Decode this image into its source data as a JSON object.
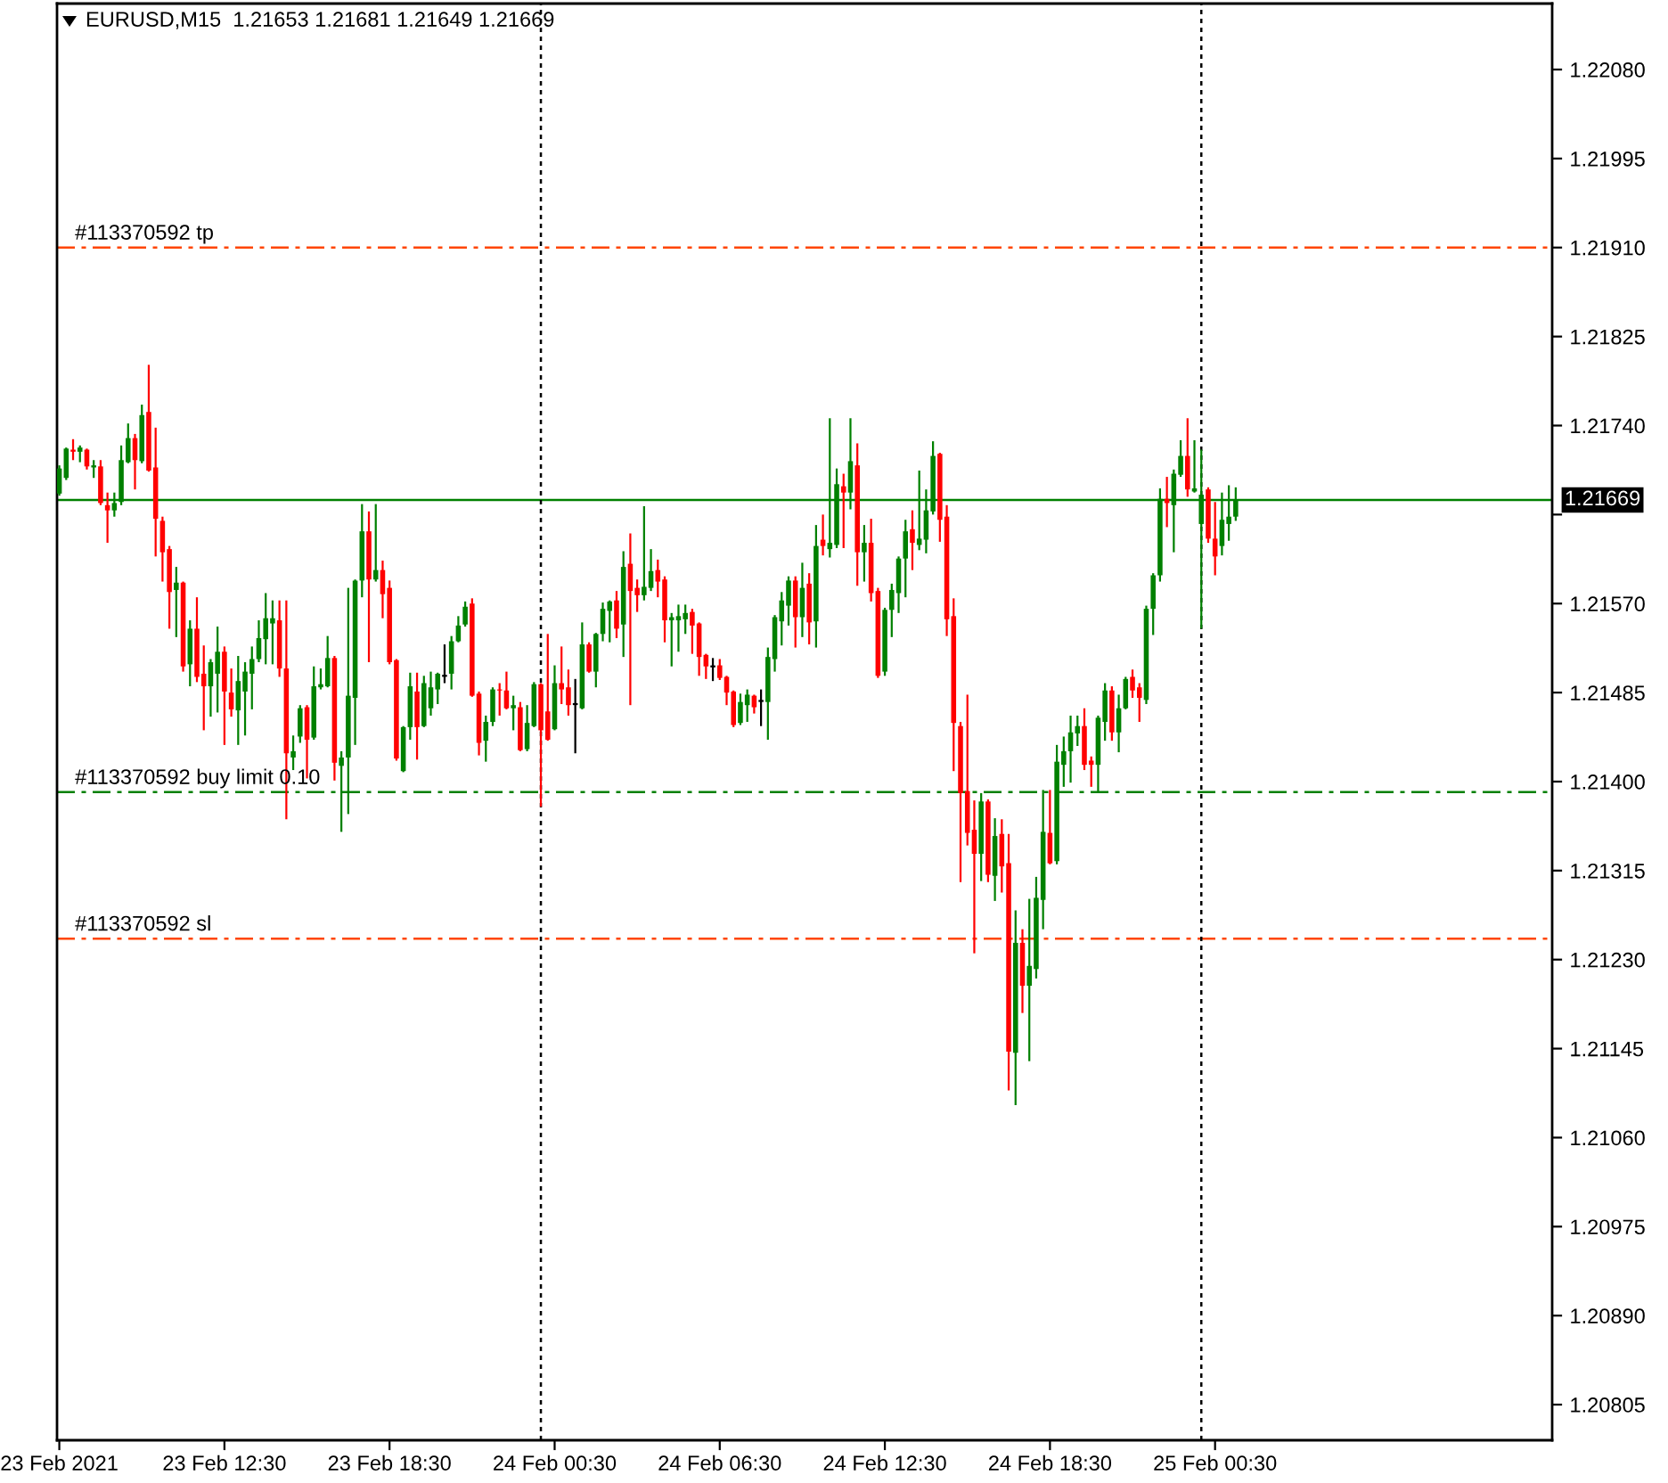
{
  "chart_data": {
    "type": "candlestick",
    "title": "EURUSD,M15  1.21653 1.21681 1.21649 1.21669",
    "x": [
      "2021-02-23T06:30",
      "2021-02-23T06:45",
      "2021-02-23T07:00",
      "2021-02-23T07:15",
      "2021-02-23T07:30",
      "2021-02-23T07:45",
      "2021-02-23T08:00",
      "2021-02-23T08:15",
      "2021-02-23T08:30",
      "2021-02-23T08:45",
      "2021-02-23T09:00",
      "2021-02-23T09:15",
      "2021-02-23T09:30",
      "2021-02-23T09:45",
      "2021-02-23T10:00",
      "2021-02-23T10:15",
      "2021-02-23T10:30",
      "2021-02-23T10:45",
      "2021-02-23T11:00",
      "2021-02-23T11:15",
      "2021-02-23T11:30",
      "2021-02-23T11:45",
      "2021-02-23T12:00",
      "2021-02-23T12:15",
      "2021-02-23T12:30",
      "2021-02-23T12:45",
      "2021-02-23T13:00",
      "2021-02-23T13:15",
      "2021-02-23T13:30",
      "2021-02-23T13:45",
      "2021-02-23T14:00",
      "2021-02-23T14:15",
      "2021-02-23T14:30",
      "2021-02-23T14:45",
      "2021-02-23T15:00",
      "2021-02-23T15:15",
      "2021-02-23T15:30",
      "2021-02-23T15:45",
      "2021-02-23T16:00",
      "2021-02-23T16:15",
      "2021-02-23T16:30",
      "2021-02-23T16:45",
      "2021-02-23T17:00",
      "2021-02-23T17:15",
      "2021-02-23T17:30",
      "2021-02-23T17:45",
      "2021-02-23T18:00",
      "2021-02-23T18:15",
      "2021-02-23T18:30",
      "2021-02-23T18:45",
      "2021-02-23T19:00",
      "2021-02-23T19:15",
      "2021-02-23T19:30",
      "2021-02-23T19:45",
      "2021-02-23T20:00",
      "2021-02-23T20:15",
      "2021-02-23T20:30",
      "2021-02-23T20:45",
      "2021-02-23T21:00",
      "2021-02-23T21:15",
      "2021-02-23T21:30",
      "2021-02-23T21:45",
      "2021-02-23T22:00",
      "2021-02-23T22:15",
      "2021-02-23T22:30",
      "2021-02-23T22:45",
      "2021-02-23T23:00",
      "2021-02-23T23:15",
      "2021-02-23T23:30",
      "2021-02-23T23:45",
      "2021-02-24T00:00",
      "2021-02-24T00:15",
      "2021-02-24T00:30",
      "2021-02-24T00:45",
      "2021-02-24T01:00",
      "2021-02-24T01:15",
      "2021-02-24T01:30",
      "2021-02-24T01:45",
      "2021-02-24T02:00",
      "2021-02-24T02:15",
      "2021-02-24T02:30",
      "2021-02-24T02:45",
      "2021-02-24T03:00",
      "2021-02-24T03:15",
      "2021-02-24T03:30",
      "2021-02-24T03:45",
      "2021-02-24T04:00",
      "2021-02-24T04:15",
      "2021-02-24T04:30",
      "2021-02-24T04:45",
      "2021-02-24T05:00",
      "2021-02-24T05:15",
      "2021-02-24T05:30",
      "2021-02-24T05:45",
      "2021-02-24T06:00",
      "2021-02-24T06:15",
      "2021-02-24T06:30",
      "2021-02-24T06:45",
      "2021-02-24T07:00",
      "2021-02-24T07:15",
      "2021-02-24T07:30",
      "2021-02-24T07:45",
      "2021-02-24T08:00",
      "2021-02-24T08:15",
      "2021-02-24T08:30",
      "2021-02-24T08:45",
      "2021-02-24T09:00",
      "2021-02-24T09:15",
      "2021-02-24T09:30",
      "2021-02-24T09:45",
      "2021-02-24T10:00",
      "2021-02-24T10:15",
      "2021-02-24T10:30",
      "2021-02-24T10:45",
      "2021-02-24T11:00",
      "2021-02-24T11:15",
      "2021-02-24T11:30",
      "2021-02-24T11:45",
      "2021-02-24T12:00",
      "2021-02-24T12:15",
      "2021-02-24T12:30",
      "2021-02-24T12:45",
      "2021-02-24T13:00",
      "2021-02-24T13:15",
      "2021-02-24T13:30",
      "2021-02-24T13:45",
      "2021-02-24T14:00",
      "2021-02-24T14:15",
      "2021-02-24T14:30",
      "2021-02-24T14:45",
      "2021-02-24T15:00",
      "2021-02-24T15:15",
      "2021-02-24T15:30",
      "2021-02-24T15:45",
      "2021-02-24T16:00",
      "2021-02-24T16:15",
      "2021-02-24T16:30",
      "2021-02-24T16:45",
      "2021-02-24T17:00",
      "2021-02-24T17:15",
      "2021-02-24T17:30",
      "2021-02-24T17:45",
      "2021-02-24T18:00",
      "2021-02-24T18:15",
      "2021-02-24T18:30",
      "2021-02-24T18:45",
      "2021-02-24T19:00",
      "2021-02-24T19:15",
      "2021-02-24T19:30",
      "2021-02-24T19:45",
      "2021-02-24T20:00",
      "2021-02-24T20:15",
      "2021-02-24T20:30",
      "2021-02-24T20:45",
      "2021-02-24T21:00",
      "2021-02-24T21:15",
      "2021-02-24T21:30",
      "2021-02-24T21:45",
      "2021-02-24T22:00",
      "2021-02-24T22:15",
      "2021-02-24T22:30",
      "2021-02-24T22:45",
      "2021-02-24T23:00",
      "2021-02-24T23:15",
      "2021-02-24T23:30",
      "2021-02-24T23:45",
      "2021-02-25T00:00",
      "2021-02-25T00:15",
      "2021-02-25T00:30",
      "2021-02-25T00:45",
      "2021-02-25T01:00",
      "2021-02-25T01:15"
    ],
    "ohlc": [
      [
        1.21675,
        1.21702,
        1.21673,
        1.21699
      ],
      [
        1.2169,
        1.21719,
        1.21688,
        1.21718
      ],
      [
        1.21717,
        1.21727,
        1.21707,
        1.21715
      ],
      [
        1.21715,
        1.21721,
        1.21705,
        1.21719
      ],
      [
        1.21717,
        1.21718,
        1.21698,
        1.21701
      ],
      [
        1.217,
        1.21707,
        1.2169,
        1.21702
      ],
      [
        1.21701,
        1.21707,
        1.21664,
        1.21666
      ],
      [
        1.21664,
        1.21676,
        1.21628,
        1.21659
      ],
      [
        1.21659,
        1.21676,
        1.21653,
        1.21666
      ],
      [
        1.21667,
        1.21721,
        1.21664,
        1.21707
      ],
      [
        1.21705,
        1.21742,
        1.21704,
        1.21728
      ],
      [
        1.21728,
        1.21732,
        1.21679,
        1.21707
      ],
      [
        1.21706,
        1.2176,
        1.21704,
        1.2175
      ],
      [
        1.21753,
        1.21798,
        1.21696,
        1.21697
      ],
      [
        1.217,
        1.21738,
        1.21615,
        1.21651
      ],
      [
        1.21649,
        1.21653,
        1.21591,
        1.21619
      ],
      [
        1.21622,
        1.21625,
        1.21546,
        1.21581
      ],
      [
        1.21583,
        1.21605,
        1.21538,
        1.2159
      ],
      [
        1.2159,
        1.21591,
        1.21505,
        1.2151
      ],
      [
        1.21512,
        1.21554,
        1.21491,
        1.21546
      ],
      [
        1.21546,
        1.21576,
        1.21495,
        1.215
      ],
      [
        1.21503,
        1.2153,
        1.21449,
        1.21491
      ],
      [
        1.21491,
        1.21517,
        1.21462,
        1.21514
      ],
      [
        1.21503,
        1.21548,
        1.21466,
        1.21524
      ],
      [
        1.21524,
        1.21529,
        1.21435,
        1.21486
      ],
      [
        1.21485,
        1.21508,
        1.21462,
        1.21469
      ],
      [
        1.21468,
        1.2152,
        1.21435,
        1.21496
      ],
      [
        1.21486,
        1.21514,
        1.21444,
        1.21505
      ],
      [
        1.21503,
        1.21529,
        1.21469,
        1.21517
      ],
      [
        1.21517,
        1.21554,
        1.21514,
        1.21537
      ],
      [
        1.21536,
        1.2158,
        1.21512,
        1.21556
      ],
      [
        1.21551,
        1.21573,
        1.21512,
        1.21556
      ],
      [
        1.21554,
        1.21573,
        1.215,
        1.21508
      ],
      [
        1.21508,
        1.21573,
        1.21364,
        1.21427
      ],
      [
        1.21423,
        1.21444,
        1.21411,
        1.21429
      ],
      [
        1.21443,
        1.21473,
        1.21437,
        1.2147
      ],
      [
        1.21471,
        1.21473,
        1.21403,
        1.2144
      ],
      [
        1.21442,
        1.2151,
        1.2144,
        1.21491
      ],
      [
        1.2149,
        1.21508,
        1.21488,
        1.21493
      ],
      [
        1.21491,
        1.21539,
        1.2149,
        1.21518
      ],
      [
        1.21518,
        1.2152,
        1.21401,
        1.21418
      ],
      [
        1.21415,
        1.21429,
        1.21352,
        1.21423
      ],
      [
        1.21423,
        1.21585,
        1.21369,
        1.21482
      ],
      [
        1.2148,
        1.21593,
        1.21435,
        1.21592
      ],
      [
        1.21592,
        1.21665,
        1.21576,
        1.21639
      ],
      [
        1.21639,
        1.21658,
        1.21514,
        1.21593
      ],
      [
        1.21593,
        1.21665,
        1.21591,
        1.21602
      ],
      [
        1.21602,
        1.21611,
        1.21556,
        1.21579
      ],
      [
        1.21585,
        1.21592,
        1.21512,
        1.21514
      ],
      [
        1.21516,
        1.21517,
        1.2142,
        1.21422
      ],
      [
        1.2141,
        1.21453,
        1.21409,
        1.21452
      ],
      [
        1.21452,
        1.21504,
        1.2144,
        1.21491
      ],
      [
        1.21486,
        1.21504,
        1.21421,
        1.21452
      ],
      [
        1.21453,
        1.21501,
        1.21452,
        1.21494
      ],
      [
        1.2147,
        1.21505,
        1.21463,
        1.2149
      ],
      [
        1.21488,
        1.21504,
        1.21474,
        1.21503
      ],
      [
        1.21501,
        1.21531,
        1.21494,
        1.21501
      ],
      [
        1.21503,
        1.21539,
        1.21488,
        1.21534
      ],
      [
        1.21534,
        1.21558,
        1.21533,
        1.21549
      ],
      [
        1.2155,
        1.21572,
        1.21548,
        1.21567
      ],
      [
        1.2157,
        1.21575,
        1.21481,
        1.21482
      ],
      [
        1.21484,
        1.21486,
        1.21425,
        1.21437
      ],
      [
        1.21439,
        1.21463,
        1.21419,
        1.21457
      ],
      [
        1.21457,
        1.2149,
        1.21453,
        1.21488
      ],
      [
        1.21488,
        1.21494,
        1.21463,
        1.21487
      ],
      [
        1.21487,
        1.21505,
        1.21469,
        1.2147
      ],
      [
        1.2147,
        1.21482,
        1.21449,
        1.21473
      ],
      [
        1.21471,
        1.21476,
        1.21429,
        1.2143
      ],
      [
        1.21431,
        1.21473,
        1.21429,
        1.21456
      ],
      [
        1.21453,
        1.21495,
        1.21452,
        1.21493
      ],
      [
        1.21493,
        1.21494,
        1.21376,
        1.21449
      ],
      [
        1.21467,
        1.21541,
        1.21439,
        1.2144
      ],
      [
        1.2145,
        1.21511,
        1.21449,
        1.21494
      ],
      [
        1.21494,
        1.21529,
        1.21474,
        1.21488
      ],
      [
        1.2149,
        1.21507,
        1.21463,
        1.21473
      ],
      [
        1.21474,
        1.21498,
        1.21427,
        1.21474
      ],
      [
        1.2147,
        1.21552,
        1.21469,
        1.21531
      ],
      [
        1.21531,
        1.21533,
        1.21504,
        1.21505
      ],
      [
        1.21505,
        1.21542,
        1.2149,
        1.21541
      ],
      [
        1.21541,
        1.21571,
        1.21534,
        1.21565
      ],
      [
        1.21563,
        1.21573,
        1.21533,
        1.21572
      ],
      [
        1.21573,
        1.21582,
        1.21537,
        1.21546
      ],
      [
        1.2155,
        1.2162,
        1.21519,
        1.21605
      ],
      [
        1.21608,
        1.21637,
        1.21473,
        1.21582
      ],
      [
        1.21585,
        1.21593,
        1.21562,
        1.21578
      ],
      [
        1.21578,
        1.21663,
        1.21573,
        1.21586
      ],
      [
        1.21585,
        1.21622,
        1.21582,
        1.21601
      ],
      [
        1.21602,
        1.21612,
        1.21576,
        1.21591
      ],
      [
        1.21593,
        1.21596,
        1.21533,
        1.21554
      ],
      [
        1.21554,
        1.21561,
        1.2151,
        1.21557
      ],
      [
        1.21554,
        1.21569,
        1.21524,
        1.21558
      ],
      [
        1.21555,
        1.21569,
        1.21541,
        1.21561
      ],
      [
        1.21562,
        1.21565,
        1.21522,
        1.21549
      ],
      [
        1.21551,
        1.21552,
        1.21501,
        1.21519
      ],
      [
        1.21521,
        1.21522,
        1.21498,
        1.2151
      ],
      [
        1.2151,
        1.21518,
        1.21496,
        1.2151
      ],
      [
        1.21511,
        1.21517,
        1.21497,
        1.21499
      ],
      [
        1.215,
        1.21501,
        1.21473,
        1.21485
      ],
      [
        1.21486,
        1.21487,
        1.21452,
        1.21454
      ],
      [
        1.21456,
        1.21484,
        1.21454,
        1.21476
      ],
      [
        1.21473,
        1.21488,
        1.21457,
        1.21483
      ],
      [
        1.21482,
        1.21483,
        1.21465,
        1.21471
      ],
      [
        1.21477,
        1.21488,
        1.21453,
        1.21477
      ],
      [
        1.21476,
        1.21528,
        1.2144,
        1.21519
      ],
      [
        1.21517,
        1.21559,
        1.21505,
        1.21557
      ],
      [
        1.21553,
        1.21581,
        1.2153,
        1.21573
      ],
      [
        1.21568,
        1.21596,
        1.21549,
        1.21592
      ],
      [
        1.21592,
        1.21596,
        1.21528,
        1.21557
      ],
      [
        1.21557,
        1.21609,
        1.21538,
        1.21585
      ],
      [
        1.21589,
        1.21599,
        1.21531,
        1.21552
      ],
      [
        1.21553,
        1.21645,
        1.21528,
        1.21625
      ],
      [
        1.21631,
        1.21655,
        1.21616,
        1.21625
      ],
      [
        1.21622,
        1.21747,
        1.21614,
        1.21628
      ],
      [
        1.21626,
        1.21699,
        1.21623,
        1.21684
      ],
      [
        1.21682,
        1.21694,
        1.21623,
        1.21676
      ],
      [
        1.21676,
        1.21747,
        1.2166,
        1.21706
      ],
      [
        1.21702,
        1.21723,
        1.21587,
        1.21619
      ],
      [
        1.21619,
        1.21645,
        1.21591,
        1.21628
      ],
      [
        1.21628,
        1.21651,
        1.21572,
        1.2158
      ],
      [
        1.21582,
        1.21585,
        1.21499,
        1.21501
      ],
      [
        1.21505,
        1.21566,
        1.21501,
        1.21564
      ],
      [
        1.21564,
        1.21589,
        1.21538,
        1.21583
      ],
      [
        1.2158,
        1.21615,
        1.21561,
        1.21613
      ],
      [
        1.21613,
        1.2165,
        1.21576,
        1.21639
      ],
      [
        1.21641,
        1.21659,
        1.21602,
        1.21628
      ],
      [
        1.21626,
        1.21697,
        1.21621,
        1.21632
      ],
      [
        1.21631,
        1.21679,
        1.21618,
        1.21659
      ],
      [
        1.21658,
        1.21725,
        1.21655,
        1.21711
      ],
      [
        1.21713,
        1.21714,
        1.21629,
        1.2165
      ],
      [
        1.21653,
        1.21664,
        1.21539,
        1.21555
      ],
      [
        1.21558,
        1.21575,
        1.2141,
        1.21456
      ],
      [
        1.21453,
        1.21457,
        1.21304,
        1.21389
      ],
      [
        1.21391,
        1.21483,
        1.21339,
        1.21351
      ],
      [
        1.21354,
        1.21382,
        1.21236,
        1.21331
      ],
      [
        1.21331,
        1.21389,
        1.21305,
        1.21381
      ],
      [
        1.21381,
        1.21383,
        1.21304,
        1.21311
      ],
      [
        1.2131,
        1.21365,
        1.21286,
        1.21348
      ],
      [
        1.2135,
        1.21364,
        1.21294,
        1.21319
      ],
      [
        1.21322,
        1.2135,
        1.21105,
        1.21142
      ],
      [
        1.21141,
        1.21277,
        1.21091,
        1.21246
      ],
      [
        1.21246,
        1.21259,
        1.21179,
        1.21205
      ],
      [
        1.21205,
        1.21288,
        1.21133,
        1.21224
      ],
      [
        1.21221,
        1.21309,
        1.21212,
        1.21289
      ],
      [
        1.21287,
        1.21392,
        1.21259,
        1.21352
      ],
      [
        1.21351,
        1.21392,
        1.21321,
        1.21322
      ],
      [
        1.21324,
        1.21435,
        1.21321,
        1.21419
      ],
      [
        1.21416,
        1.21443,
        1.21395,
        1.21429
      ],
      [
        1.21429,
        1.21463,
        1.21399,
        1.21447
      ],
      [
        1.21446,
        1.21463,
        1.21434,
        1.21453
      ],
      [
        1.21453,
        1.2147,
        1.21411,
        1.21416
      ],
      [
        1.2142,
        1.21424,
        1.21395,
        1.21416
      ],
      [
        1.21416,
        1.21463,
        1.21389,
        1.21461
      ],
      [
        1.21457,
        1.21494,
        1.21439,
        1.21487
      ],
      [
        1.21487,
        1.21491,
        1.21439,
        1.21447
      ],
      [
        1.21447,
        1.21483,
        1.21428,
        1.2147
      ],
      [
        1.2147,
        1.215,
        1.21469,
        1.21498
      ],
      [
        1.215,
        1.21507,
        1.2148,
        1.21487
      ],
      [
        1.2149,
        1.21494,
        1.21457,
        1.2148
      ],
      [
        1.21478,
        1.21568,
        1.21474,
        1.21565
      ],
      [
        1.21565,
        1.21599,
        1.2154,
        1.21597
      ],
      [
        1.21597,
        1.2168,
        1.21591,
        1.2167
      ],
      [
        1.2167,
        1.21691,
        1.21643,
        1.21666
      ],
      [
        1.21664,
        1.21698,
        1.21619,
        1.21694
      ],
      [
        1.21693,
        1.21726,
        1.21691,
        1.21711
      ],
      [
        1.21711,
        1.21747,
        1.21672,
        1.21679
      ],
      [
        1.21677,
        1.21726,
        1.21676,
        1.2168
      ],
      [
        1.21646,
        1.21717,
        1.21546,
        1.21674
      ],
      [
        1.21679,
        1.21681,
        1.21628,
        1.21632
      ],
      [
        1.21632,
        1.21667,
        1.21597,
        1.21615
      ],
      [
        1.21625,
        1.21676,
        1.21616,
        1.2165
      ],
      [
        1.21646,
        1.21683,
        1.2163,
        1.21653
      ],
      [
        1.21653,
        1.21681,
        1.21649,
        1.21669
      ]
    ],
    "colors": [
      "#008000",
      "#008000",
      "#ff0000",
      "#008000",
      "#ff0000",
      "#008000",
      "#ff0000",
      "#ff0000",
      "#008000",
      "#008000",
      "#008000",
      "#ff0000",
      "#008000",
      "#ff0000",
      "#ff0000",
      "#ff0000",
      "#ff0000",
      "#008000",
      "#ff0000",
      "#008000",
      "#ff0000",
      "#ff0000",
      "#008000",
      "#008000",
      "#ff0000",
      "#ff0000",
      "#008000",
      "#008000",
      "#008000",
      "#008000",
      "#008000",
      "#008000",
      "#ff0000",
      "#ff0000",
      "#008000",
      "#008000",
      "#ff0000",
      "#008000",
      "#008000",
      "#008000",
      "#ff0000",
      "#008000",
      "#008000",
      "#008000",
      "#008000",
      "#ff0000",
      "#008000",
      "#ff0000",
      "#ff0000",
      "#ff0000",
      "#008000",
      "#008000",
      "#ff0000",
      "#008000",
      "#008000",
      "#008000",
      "#000000",
      "#008000",
      "#008000",
      "#008000",
      "#ff0000",
      "#ff0000",
      "#008000",
      "#008000",
      "#ff0000",
      "#ff0000",
      "#008000",
      "#ff0000",
      "#008000",
      "#008000",
      "#ff0000",
      "#ff0000",
      "#008000",
      "#ff0000",
      "#ff0000",
      "#000000",
      "#008000",
      "#ff0000",
      "#008000",
      "#008000",
      "#008000",
      "#ff0000",
      "#008000",
      "#ff0000",
      "#ff0000",
      "#008000",
      "#008000",
      "#ff0000",
      "#ff0000",
      "#008000",
      "#008000",
      "#008000",
      "#ff0000",
      "#ff0000",
      "#ff0000",
      "#000000",
      "#ff0000",
      "#ff0000",
      "#ff0000",
      "#008000",
      "#008000",
      "#ff0000",
      "#000000",
      "#008000",
      "#008000",
      "#008000",
      "#008000",
      "#ff0000",
      "#008000",
      "#ff0000",
      "#008000",
      "#ff0000",
      "#008000",
      "#008000",
      "#ff0000",
      "#008000",
      "#ff0000",
      "#008000",
      "#ff0000",
      "#ff0000",
      "#008000",
      "#008000",
      "#008000",
      "#008000",
      "#ff0000",
      "#008000",
      "#008000",
      "#008000",
      "#ff0000",
      "#ff0000",
      "#ff0000",
      "#ff0000",
      "#ff0000",
      "#ff0000",
      "#008000",
      "#ff0000",
      "#008000",
      "#ff0000",
      "#ff0000",
      "#008000",
      "#ff0000",
      "#008000",
      "#008000",
      "#008000",
      "#ff0000",
      "#008000",
      "#008000",
      "#008000",
      "#008000",
      "#ff0000",
      "#ff0000",
      "#008000",
      "#008000",
      "#ff0000",
      "#008000",
      "#008000",
      "#ff0000",
      "#ff0000",
      "#008000",
      "#008000",
      "#008000",
      "#ff0000",
      "#008000",
      "#008000",
      "#ff0000",
      "#008000",
      "#008000",
      "#ff0000",
      "#ff0000",
      "#008000",
      "#008000",
      "#008000"
    ],
    "xlim": [
      "2021-02-23T06:25",
      "2021-02-25T12:45"
    ],
    "ylim": [
      1.20771,
      1.22143
    ],
    "xticks": [
      {
        "value": "2021-02-23T06:30",
        "label": "23 Feb 2021"
      },
      {
        "value": "2021-02-23T12:30",
        "label": "23 Feb 12:30"
      },
      {
        "value": "2021-02-23T18:30",
        "label": "23 Feb 18:30"
      },
      {
        "value": "2021-02-24T00:30",
        "label": "24 Feb 00:30"
      },
      {
        "value": "2021-02-24T06:30",
        "label": "24 Feb 06:30"
      },
      {
        "value": "2021-02-24T12:30",
        "label": "24 Feb 12:30"
      },
      {
        "value": "2021-02-24T18:30",
        "label": "24 Feb 18:30"
      },
      {
        "value": "2021-02-25T00:30",
        "label": "25 Feb 00:30"
      }
    ],
    "yticks": [
      {
        "value": 1.2208,
        "label": "1.22080"
      },
      {
        "value": 1.21995,
        "label": "1.21995"
      },
      {
        "value": 1.2191,
        "label": "1.21910"
      },
      {
        "value": 1.21825,
        "label": "1.21825"
      },
      {
        "value": 1.2174,
        "label": "1.21740"
      },
      {
        "value": 1.21655,
        "label": null
      },
      {
        "value": 1.2157,
        "label": "1.21570"
      },
      {
        "value": 1.21485,
        "label": "1.21485"
      },
      {
        "value": 1.214,
        "label": "1.21400"
      },
      {
        "value": 1.21315,
        "label": "1.21315"
      },
      {
        "value": 1.2123,
        "label": "1.21230"
      },
      {
        "value": 1.21145,
        "label": "1.21145"
      },
      {
        "value": 1.2106,
        "label": "1.21060"
      },
      {
        "value": 1.20975,
        "label": "1.20975"
      },
      {
        "value": 1.2089,
        "label": "1.20890"
      },
      {
        "value": 1.20805,
        "label": "1.20805"
      }
    ],
    "ref_lines": [
      {
        "axis": "y",
        "value": 1.2191,
        "label": "#113370592 tp",
        "color": "#ff4500",
        "line_style": "dashdot"
      },
      {
        "axis": "y",
        "value": 1.2139,
        "label": "#113370592 buy limit 0.10",
        "color": "#008000",
        "line_style": "dashdot"
      },
      {
        "axis": "y",
        "value": 1.2125,
        "label": "#113370592 sl",
        "color": "#ff4500",
        "line_style": "dashdot"
      },
      {
        "axis": "y",
        "value": 1.21669,
        "label": "1.21669",
        "color": "#008000",
        "line_style": "solid"
      },
      {
        "axis": "x",
        "value": "2021-02-24T00:00",
        "color": "#000000",
        "line_style": "dotted"
      },
      {
        "axis": "x",
        "value": "2021-02-25T00:00",
        "color": "#000000",
        "line_style": "dotted"
      }
    ]
  }
}
